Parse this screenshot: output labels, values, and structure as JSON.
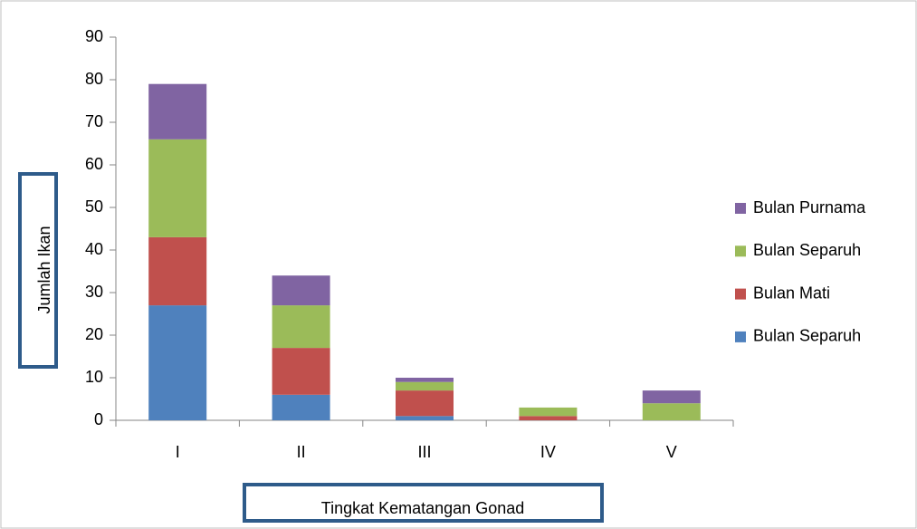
{
  "chart_data": {
    "type": "stacked_bar",
    "categories": [
      "I",
      "II",
      "III",
      "IV",
      "V"
    ],
    "series": [
      {
        "name": "Bulan Separuh",
        "color": "#4f81bd",
        "values": [
          27,
          6,
          1,
          0,
          0
        ]
      },
      {
        "name": "Bulan Mati",
        "color": "#c0504d",
        "values": [
          16,
          11,
          6,
          1,
          0
        ]
      },
      {
        "name": "Bulan Separuh",
        "color": "#9bbb59",
        "values": [
          23,
          10,
          2,
          2,
          4
        ]
      },
      {
        "name": "Bulan Purnama",
        "color": "#8064a2",
        "values": [
          13,
          7,
          1,
          0,
          3
        ]
      }
    ],
    "ylim": [
      0,
      90
    ],
    "yticks": [
      0,
      10,
      20,
      30,
      40,
      50,
      60,
      70,
      80,
      90
    ],
    "y_label": "Jumlah Ikan",
    "x_label": "Tingkat Kematangan Gonad",
    "legend": "right"
  }
}
